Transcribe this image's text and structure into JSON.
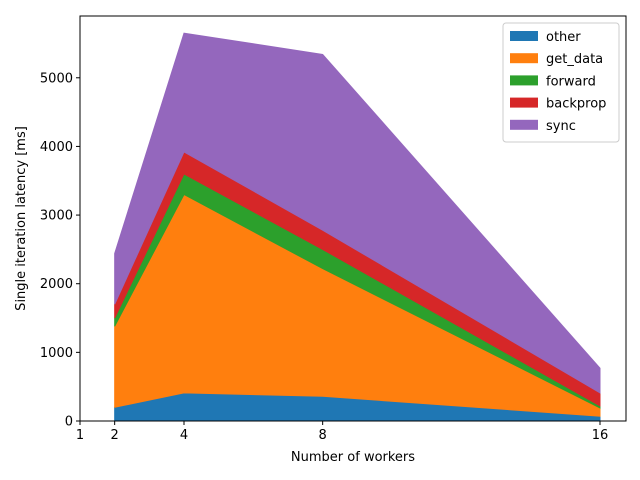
{
  "chart_data": {
    "type": "area",
    "stacked": true,
    "xlabel": "Number of workers",
    "ylabel": "Single iteration latency [ms]",
    "x": [
      2,
      4,
      8,
      16
    ],
    "xticks": [
      1,
      2,
      4,
      8,
      16
    ],
    "xlim": [
      1,
      16.75
    ],
    "yticks": [
      0,
      1000,
      2000,
      3000,
      4000,
      5000
    ],
    "ylim": [
      0,
      5900
    ],
    "grid": false,
    "legend_position": "top-right",
    "series": [
      {
        "name": "other",
        "color": "#1f77b4",
        "values": [
          200,
          410,
          360,
          70
        ]
      },
      {
        "name": "get_data",
        "color": "#ff7f0e",
        "values": [
          1180,
          2890,
          1860,
          120
        ]
      },
      {
        "name": "forward",
        "color": "#2ca02c",
        "values": [
          120,
          300,
          280,
          30
        ]
      },
      {
        "name": "backprop",
        "color": "#d62728",
        "values": [
          200,
          320,
          280,
          190
        ]
      },
      {
        "name": "sync",
        "color": "#9467bd",
        "values": [
          740,
          1730,
          2560,
          360
        ]
      }
    ]
  }
}
